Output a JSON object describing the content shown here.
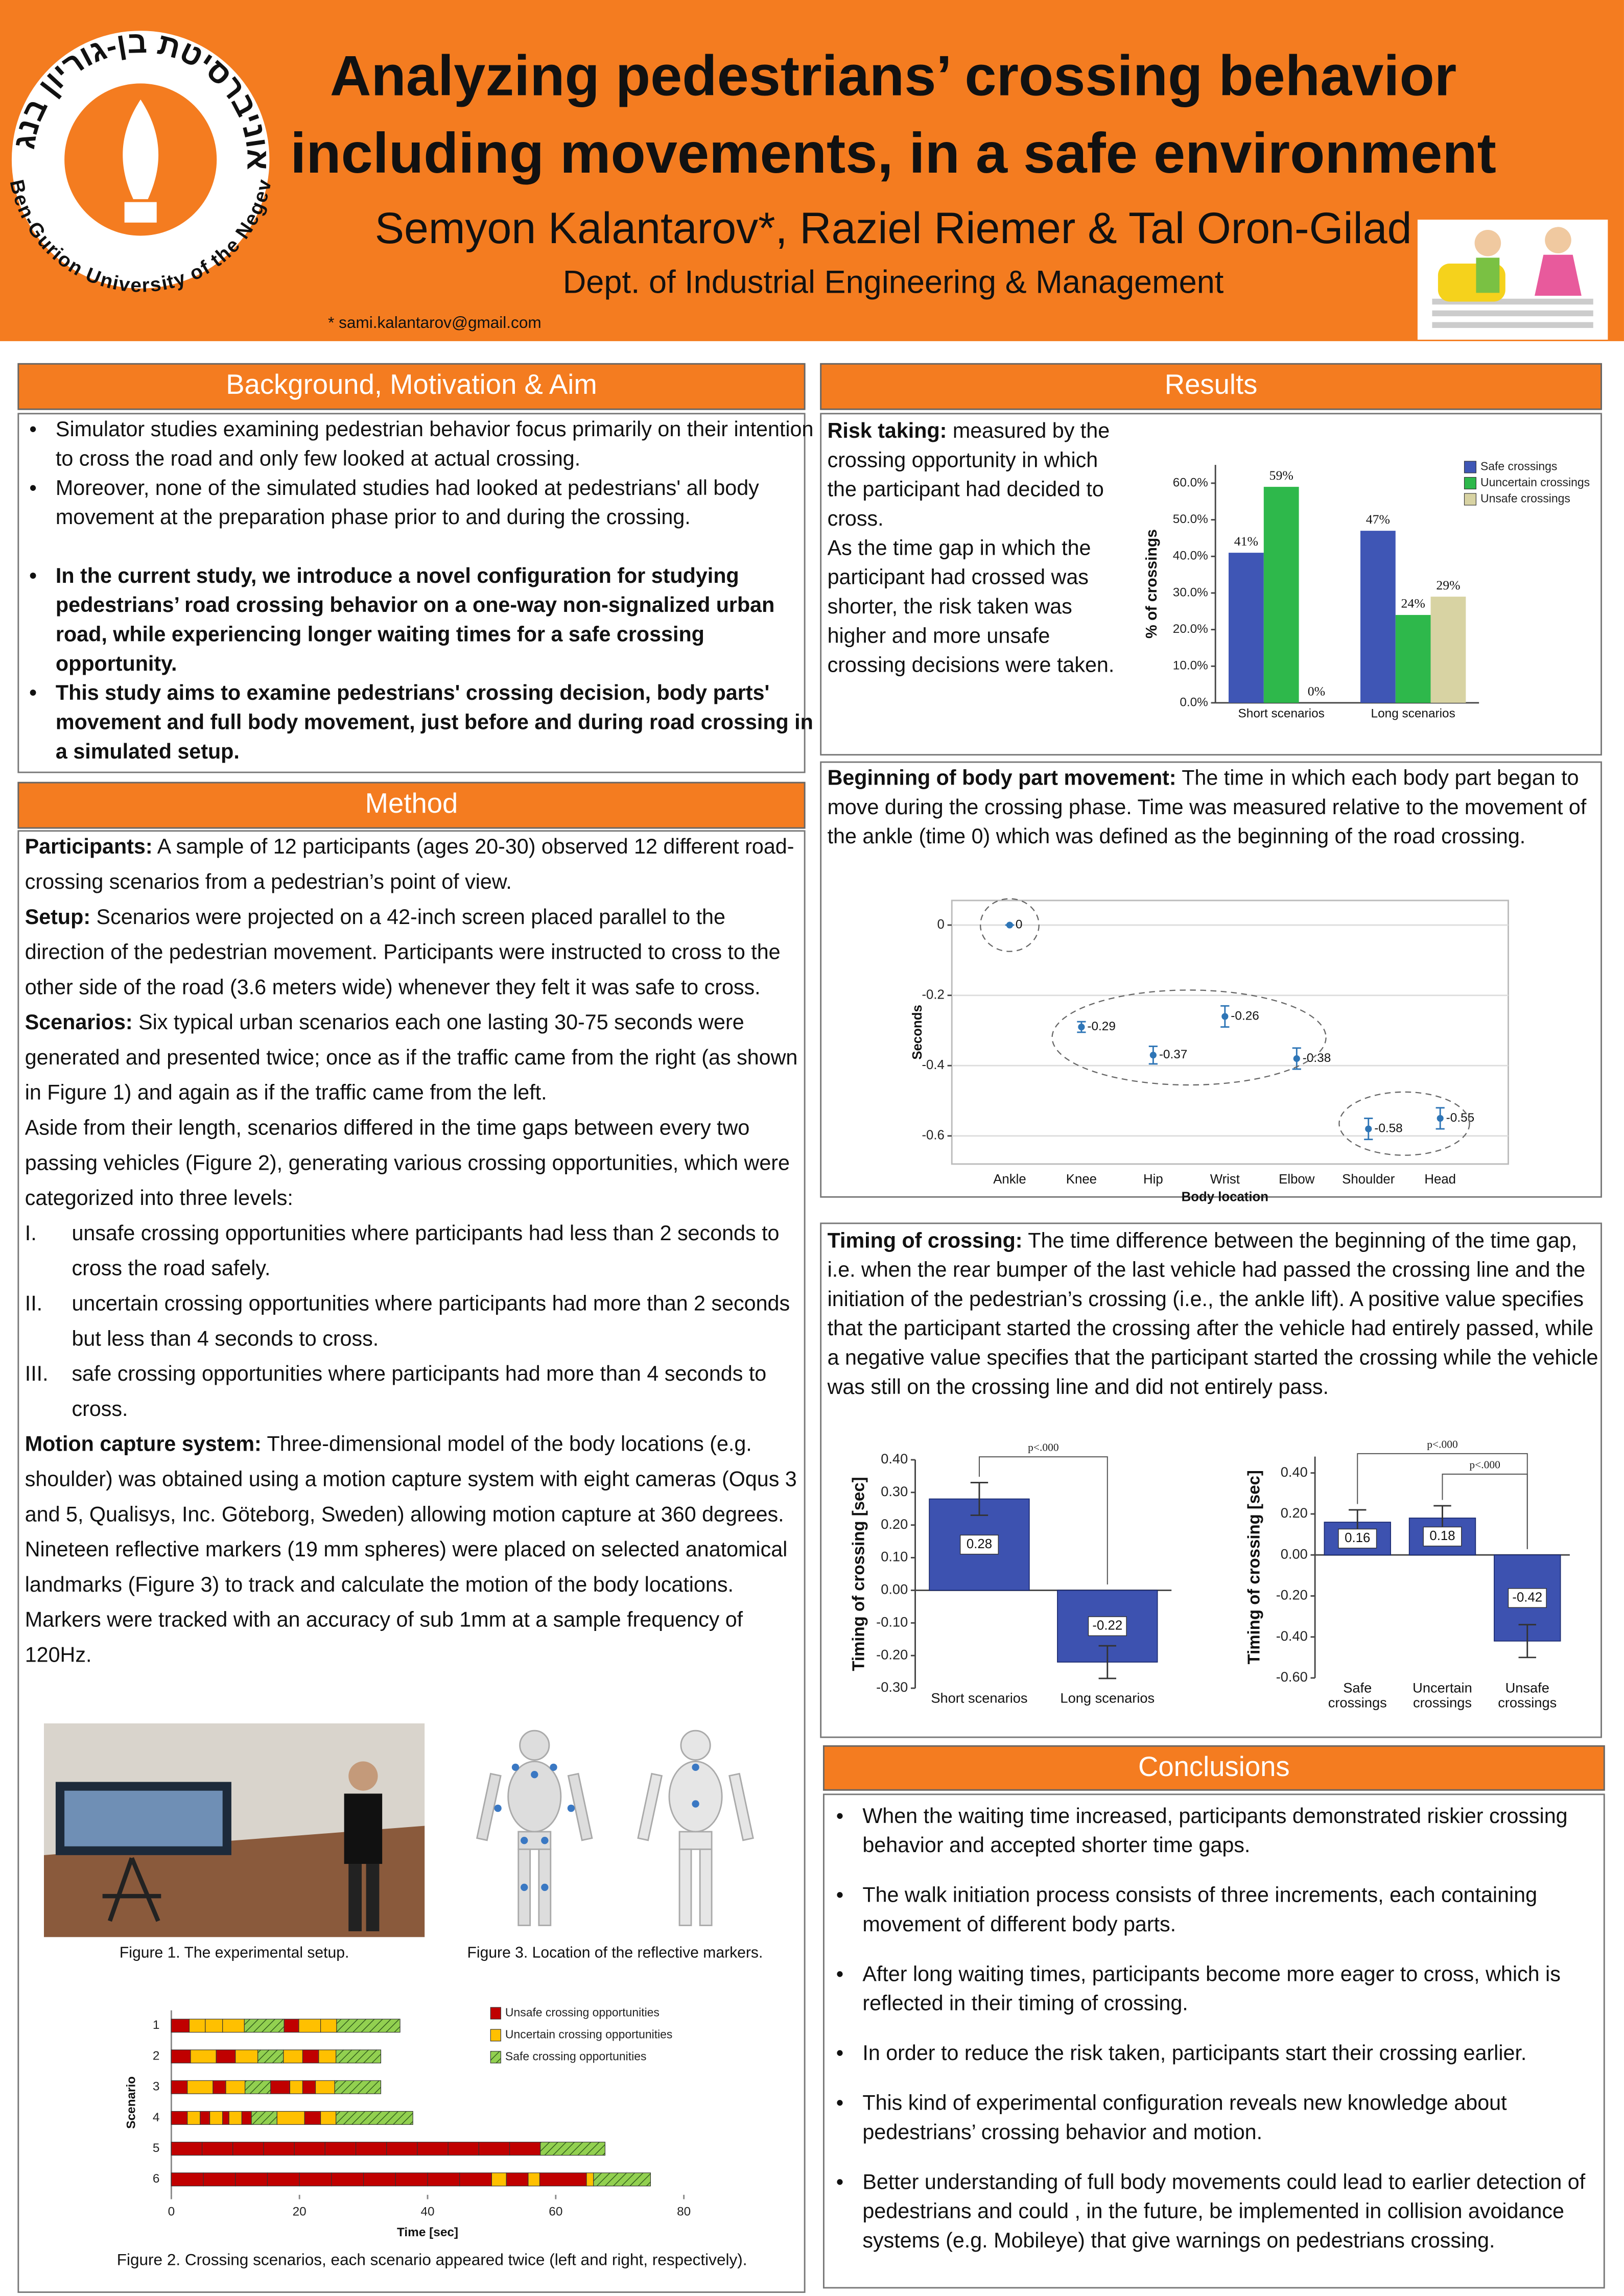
{
  "header": {
    "title": [
      "Analyzing pedestrians’ crossing behavior",
      "including movements, in a safe environment"
    ],
    "authors": "Semyon Kalantarov*, Raziel Riemer & Tal Oron-Gilad",
    "dept": "Dept. of Industrial Engineering & Management",
    "email": "* sami.kalantarov@gmail.com",
    "logo_hebrew": "אוניברסיטת בן-גוריון בנגב",
    "logo_english": "Ben-Gurion University of the Negev"
  },
  "background": {
    "heading": "Background, Motivation & Aim",
    "bullets": [
      {
        "text": "Simulator studies examining pedestrian behavior focus primarily on their intention to cross the road and only few looked at actual crossing.",
        "bold": false
      },
      {
        "text": "Moreover, none of the simulated studies had looked at pedestrians' all body movement at the preparation phase prior to and during the crossing.",
        "bold": false
      },
      {
        "text": "In the current study, we introduce a novel configuration for studying pedestrians’ road crossing behavior on a one-way non-signalized urban road, while experiencing longer waiting times for a safe crossing opportunity.",
        "bold": true
      },
      {
        "text": "This study aims to examine pedestrians' crossing decision, body parts' movement and full body movement, just before and during road crossing in a simulated setup.",
        "bold": true
      }
    ]
  },
  "method": {
    "heading": "Method",
    "intro": [
      {
        "label": "Participants:",
        "text": " A sample of 12 participants (ages 20-30) observed 12 different road-crossing scenarios from a pedestrian’s point of view."
      },
      {
        "label": "Setup:",
        "text": " Scenarios  were projected on a 42-inch screen placed parallel to the direction of the pedestrian movement. Participants were instructed to cross to the other side of the road (3.6 meters wide) whenever they felt it was safe to cross."
      },
      {
        "label": "Scenarios:",
        "text": " Six typical urban scenarios each one lasting 30-75 seconds were generated and presented twice; once as if the traffic came from the right (as shown in Figure 1) and again as if the traffic came from the left."
      }
    ],
    "aside": "Aside from their length, scenarios differed in the time gaps between every two passing vehicles (Figure 2), generating various crossing opportunities, which were categorized into three levels:",
    "levels": [
      {
        "num": "I.",
        "text": "unsafe crossing opportunities where participants had less than 2 seconds to cross the road safely."
      },
      {
        "num": "II.",
        "text": "uncertain crossing opportunities where participants had more than 2 seconds but less than 4 seconds to cross."
      },
      {
        "num": "III.",
        "text": "safe crossing opportunities where participants had more than 4 seconds to cross."
      }
    ],
    "motion": {
      "label": "Motion capture system:",
      "text": " Three-dimensional model of the body locations (e.g. shoulder) was obtained using a motion capture system with eight cameras (Oqus 3 and 5, Qualisys, Inc. Göteborg, Sweden) allowing motion capture at 360 degrees. Nineteen reflective markers (19 mm spheres) were placed on selected anatomical landmarks (Figure 3) to track and calculate the motion of the body locations. Markers were tracked with an accuracy of sub 1mm at a sample frequency of 120Hz."
    }
  },
  "figures": {
    "fig1": "Figure 1. The experimental setup.",
    "fig3": "Figure 3. Location of the reflective markers.",
    "fig2": "Figure 2. Crossing scenarios, each scenario appeared twice (left and right, respectively)."
  },
  "results": {
    "heading": "Results",
    "risk": {
      "label": "Risk taking:",
      "text": " measured by the crossing opportunity in which the participant had decided to cross.",
      "text2": "As the time gap in which the participant had crossed was shorter, the risk taken was higher and more unsafe crossing decisions were taken."
    },
    "movement": {
      "label": "Beginning of body part movement:",
      "text": " The time in which each body part began to move during the crossing phase. Time was measured relative to the movement of the ankle (time 0) which was defined as the beginning of the road crossing."
    },
    "timing": {
      "label": "Timing of crossing:",
      "text": " The time difference between the beginning of the time gap, i.e. when the rear bumper of the last vehicle had passed the crossing line and the initiation of the pedestrian’s crossing (i.e., the ankle lift). A positive value specifies that the participant started the crossing after the vehicle had entirely passed, while a negative value specifies that the participant started the crossing while the vehicle was still on the crossing line and did not entirely pass."
    }
  },
  "conclusions": {
    "heading": "Conclusions",
    "bullets": [
      "When the waiting time increased, participants demonstrated riskier crossing behavior and accepted shorter time gaps.",
      "The walk initiation process consists of three increments, each containing movement of different body parts.",
      "After long waiting times, participants become more eager to cross, which is reflected in their timing of crossing.",
      "In order to reduce the risk taken, participants start their crossing earlier.",
      "This kind of experimental configuration reveals new knowledge about pedestrians’ crossing behavior and motion.",
      "Better understanding of full body movements could lead to earlier detection of pedestrians and could , in the future, be implemented in collision avoidance systems (e.g. Mobileye) that give warnings on pedestrians crossing."
    ]
  },
  "chart_data": [
    {
      "type": "bar",
      "ylabel": "% of crossings",
      "categories": [
        "Short scenarios",
        "Long scenarios"
      ],
      "legend": "upper right",
      "series": [
        {
          "name": "Safe crossings",
          "color": "#3f56b5",
          "values": [
            41,
            47
          ],
          "value_labels": [
            "41%",
            "47%"
          ]
        },
        {
          "name": "Uuncertain crossings",
          "color": "#2eb84b",
          "values": [
            59,
            24
          ],
          "value_labels": [
            "59%",
            "24%"
          ]
        },
        {
          "name": "Unsafe crossings",
          "color": "#d8d3a3",
          "values": [
            0,
            29
          ],
          "value_labels": [
            "0%",
            "29%"
          ]
        }
      ],
      "ylim": [
        0,
        65
      ],
      "yticks": [
        {
          "value": 0,
          "label": "0.0%"
        },
        {
          "value": 10,
          "label": "10.0%"
        },
        {
          "value": 20,
          "label": "20.0%"
        },
        {
          "value": 30,
          "label": "30.0%"
        },
        {
          "value": 40,
          "label": "40.0%"
        },
        {
          "value": 50,
          "label": "50.0%"
        },
        {
          "value": 60,
          "label": "60.0%"
        }
      ],
      "grid": false
    },
    {
      "type": "errorbar",
      "xlabel": "Body location",
      "ylabel": "Seconds",
      "color": "#2e75b6",
      "categories": [
        "Ankle",
        "Knee",
        "Hip",
        "Wrist",
        "Elbow",
        "Shoulder",
        "Head"
      ],
      "values": [
        0,
        -0.29,
        -0.37,
        -0.26,
        -0.38,
        -0.58,
        -0.55
      ],
      "errors": [
        0,
        0.015,
        0.025,
        0.03,
        0.03,
        0.03,
        0.03
      ],
      "ylim": [
        -0.68,
        0.07
      ],
      "yticks": [
        0,
        -0.2,
        -0.4,
        -0.6
      ],
      "grid": true
    },
    {
      "type": "bar",
      "ylabel": "Timing of crossing [sec]",
      "color": "#3d52b0",
      "categories": [
        "Short scenarios",
        "Long scenarios"
      ],
      "values": [
        0.28,
        -0.22
      ],
      "errors": [
        0.05,
        0.05
      ],
      "annotations": [
        "p<.000"
      ],
      "ylim": [
        -0.3,
        0.4
      ],
      "yticks": [
        {
          "value": -0.3,
          "label": "-0.30"
        },
        {
          "value": -0.2,
          "label": "-0.20"
        },
        {
          "value": -0.1,
          "label": "-0.10"
        },
        {
          "value": 0,
          "label": "0.00"
        },
        {
          "value": 0.1,
          "label": "0.10"
        },
        {
          "value": 0.2,
          "label": "0.20"
        },
        {
          "value": 0.3,
          "label": "0.30"
        },
        {
          "value": 0.4,
          "label": "0.40"
        }
      ],
      "grid": false
    },
    {
      "type": "bar",
      "ylabel": "Timing of crossing [sec]",
      "color": "#3d52b0",
      "categories": [
        "Safe crossings",
        "Uncertain crossings",
        "Unsafe crossings"
      ],
      "values": [
        0.16,
        0.18,
        -0.42
      ],
      "errors": [
        0.06,
        0.06,
        0.08
      ],
      "annotations": [
        "p<.000",
        "p<.000"
      ],
      "ylim": [
        -0.6,
        0.48
      ],
      "yticks": [
        {
          "value": -0.6,
          "label": "-0.60"
        },
        {
          "value": -0.4,
          "label": "-0.40"
        },
        {
          "value": -0.2,
          "label": "-0.20"
        },
        {
          "value": 0,
          "label": "0.00"
        },
        {
          "value": 0.2,
          "label": "0.20"
        },
        {
          "value": 0.4,
          "label": "0.40"
        }
      ],
      "grid": false
    },
    {
      "type": "gantt",
      "xlabel": "Time [sec]",
      "ylabel": "Scenario",
      "legend": "upper right",
      "categories": [
        "1",
        "2",
        "3",
        "4",
        "5",
        "6"
      ],
      "series": [
        {
          "name": "Unsafe crossing opportunities",
          "color": "#c00000"
        },
        {
          "name": "Uncertain crossing opportunities",
          "color": "#ffc000"
        },
        {
          "name": "Safe crossing opportunities",
          "color": "#92d050",
          "hatch": true
        }
      ],
      "segments": [
        [
          {
            "s": 0,
            "v": 2.8
          },
          {
            "s": 1,
            "v": 2.5
          },
          {
            "s": 1,
            "v": 2.7
          },
          {
            "s": 1,
            "v": 3.4
          },
          {
            "s": 2,
            "v": 6.2
          },
          {
            "s": 0,
            "v": 2.3
          },
          {
            "s": 1,
            "v": 3.4
          },
          {
            "s": 1,
            "v": 2.5
          },
          {
            "s": 2,
            "v": 9.9
          }
        ],
        [
          {
            "s": 0,
            "v": 3
          },
          {
            "s": 1,
            "v": 4
          },
          {
            "s": 0,
            "v": 3
          },
          {
            "s": 1,
            "v": 3.5
          },
          {
            "s": 2,
            "v": 4
          },
          {
            "s": 1,
            "v": 3
          },
          {
            "s": 0,
            "v": 2.5
          },
          {
            "s": 1,
            "v": 2.7
          },
          {
            "s": 2,
            "v": 7
          }
        ],
        [
          {
            "s": 0,
            "v": 2.5
          },
          {
            "s": 1,
            "v": 4
          },
          {
            "s": 0,
            "v": 2
          },
          {
            "s": 1,
            "v": 3
          },
          {
            "s": 2,
            "v": 4
          },
          {
            "s": 0,
            "v": 3
          },
          {
            "s": 1,
            "v": 2
          },
          {
            "s": 0,
            "v": 2
          },
          {
            "s": 1,
            "v": 3
          },
          {
            "s": 2,
            "v": 7.2
          }
        ],
        [
          {
            "s": 0,
            "v": 2.5
          },
          {
            "s": 1,
            "v": 2
          },
          {
            "s": 0,
            "v": 1.5
          },
          {
            "s": 1,
            "v": 2
          },
          {
            "s": 0,
            "v": 1
          },
          {
            "s": 1,
            "v": 2
          },
          {
            "s": 0,
            "v": 1.5
          },
          {
            "s": 2,
            "v": 4
          },
          {
            "s": 1,
            "v": 4.3
          },
          {
            "s": 0,
            "v": 2.5
          },
          {
            "s": 1,
            "v": 2.4
          },
          {
            "s": 2,
            "v": 12
          }
        ],
        [
          {
            "s": 0,
            "v": 4.8
          },
          {
            "s": 0,
            "v": 4.8
          },
          {
            "s": 0,
            "v": 4.8
          },
          {
            "s": 0,
            "v": 4.8
          },
          {
            "s": 0,
            "v": 4.8
          },
          {
            "s": 0,
            "v": 4.8
          },
          {
            "s": 0,
            "v": 4.8
          },
          {
            "s": 0,
            "v": 4.8
          },
          {
            "s": 0,
            "v": 4.8
          },
          {
            "s": 0,
            "v": 4.8
          },
          {
            "s": 0,
            "v": 4.8
          },
          {
            "s": 0,
            "v": 4.8
          },
          {
            "s": 2,
            "v": 10.1
          }
        ],
        [
          {
            "s": 0,
            "v": 5
          },
          {
            "s": 0,
            "v": 5
          },
          {
            "s": 0,
            "v": 5
          },
          {
            "s": 0,
            "v": 5
          },
          {
            "s": 0,
            "v": 5
          },
          {
            "s": 0,
            "v": 5
          },
          {
            "s": 0,
            "v": 5
          },
          {
            "s": 0,
            "v": 5
          },
          {
            "s": 0,
            "v": 5
          },
          {
            "s": 0,
            "v": 5
          },
          {
            "s": 1,
            "v": 2.3
          },
          {
            "s": 0,
            "v": 3.4
          },
          {
            "s": 1,
            "v": 1.8
          },
          {
            "s": 0,
            "v": 7.3
          },
          {
            "s": 1,
            "v": 1.1
          },
          {
            "s": 2,
            "v": 8.9
          }
        ]
      ],
      "xlim": [
        0,
        80
      ],
      "xticks": [
        0,
        20,
        40,
        60,
        80
      ]
    }
  ]
}
